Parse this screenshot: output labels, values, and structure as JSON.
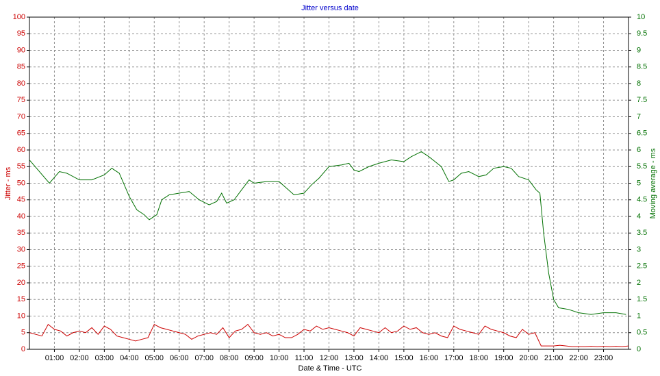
{
  "chart_data": {
    "type": "line",
    "title": "Jitter versus date",
    "ylabel": "Jitter - ms",
    "y2label": "Moving average - ms",
    "xlabel": "Date & Time - UTC",
    "xlim": [
      0,
      24
    ],
    "xticks": [
      {
        "value": 1,
        "label": "01:00"
      },
      {
        "value": 2,
        "label": "02:00"
      },
      {
        "value": 3,
        "label": "03:00"
      },
      {
        "value": 4,
        "label": "04:00"
      },
      {
        "value": 5,
        "label": "05:00"
      },
      {
        "value": 6,
        "label": "06:00"
      },
      {
        "value": 7,
        "label": "07:00"
      },
      {
        "value": 8,
        "label": "08:00"
      },
      {
        "value": 9,
        "label": "09:00"
      },
      {
        "value": 10,
        "label": "10:00"
      },
      {
        "value": 11,
        "label": "11:00"
      },
      {
        "value": 12,
        "label": "12:00"
      },
      {
        "value": 13,
        "label": "13:00"
      },
      {
        "value": 14,
        "label": "14:00"
      },
      {
        "value": 15,
        "label": "15:00"
      },
      {
        "value": 16,
        "label": "16:00"
      },
      {
        "value": 17,
        "label": "17:00"
      },
      {
        "value": 18,
        "label": "18:00"
      },
      {
        "value": 19,
        "label": "19:00"
      },
      {
        "value": 20,
        "label": "20:00"
      },
      {
        "value": 21,
        "label": "21:00"
      },
      {
        "value": 22,
        "label": "22:00"
      },
      {
        "value": 23,
        "label": "23:00"
      }
    ],
    "ylim": [
      0,
      100
    ],
    "yticks": [
      0,
      5,
      10,
      15,
      20,
      25,
      30,
      35,
      40,
      45,
      50,
      55,
      60,
      65,
      70,
      75,
      80,
      85,
      90,
      95,
      100
    ],
    "y2lim": [
      0,
      10
    ],
    "y2ticks": [
      0,
      0.5,
      1,
      1.5,
      2,
      2.5,
      3,
      3.5,
      4,
      4.5,
      5,
      5.5,
      6,
      6.5,
      7,
      7.5,
      8,
      8.5,
      9,
      9.5,
      10
    ],
    "grid": true,
    "series": [
      {
        "color": "#cc0000",
        "axis": "y",
        "x": [
          0,
          0.25,
          0.5,
          0.75,
          1,
          1.25,
          1.5,
          1.75,
          2,
          2.25,
          2.5,
          2.75,
          3,
          3.25,
          3.5,
          3.75,
          4,
          4.25,
          4.5,
          4.75,
          5,
          5.25,
          5.5,
          5.75,
          6,
          6.25,
          6.5,
          6.75,
          7,
          7.25,
          7.5,
          7.75,
          8,
          8.25,
          8.5,
          8.75,
          9,
          9.25,
          9.5,
          9.75,
          10,
          10.25,
          10.5,
          10.75,
          11,
          11.25,
          11.5,
          11.75,
          12,
          12.25,
          12.5,
          12.75,
          13,
          13.25,
          13.5,
          13.75,
          14,
          14.25,
          14.5,
          14.75,
          15,
          15.25,
          15.5,
          15.75,
          16,
          16.25,
          16.5,
          16.75,
          17,
          17.25,
          17.5,
          17.75,
          18,
          18.25,
          18.5,
          18.75,
          19,
          19.25,
          19.5,
          19.75,
          20,
          20.25,
          20.5,
          20.75,
          21,
          21.25,
          21.5,
          21.75,
          22,
          22.25,
          22.5,
          22.75,
          23,
          23.25,
          23.5,
          23.75,
          24
        ],
        "values": [
          5,
          4.5,
          4,
          7.5,
          6,
          5.5,
          4,
          5,
          5.5,
          5,
          6.5,
          4.5,
          7,
          6,
          4,
          3.5,
          3,
          2.5,
          3,
          3.5,
          7.5,
          6.5,
          6,
          5.5,
          5,
          4.5,
          3,
          4,
          4.5,
          5,
          4.5,
          6.5,
          3.5,
          5.5,
          6,
          7.5,
          5,
          4.5,
          5,
          4,
          4.5,
          3.5,
          3.5,
          4.5,
          6,
          5.5,
          7,
          6,
          6.5,
          6,
          5.5,
          5,
          4,
          6.5,
          6,
          5.5,
          5,
          6.5,
          5,
          5.5,
          7,
          6,
          6.5,
          5,
          4.5,
          5,
          4,
          3.5,
          7,
          6,
          5.5,
          5,
          4.5,
          7,
          6,
          5.5,
          5,
          4,
          3.5,
          6,
          4.5,
          5,
          1,
          1,
          1,
          1.2,
          1,
          0.8,
          0.8,
          0.8,
          0.9,
          0.8,
          0.9,
          0.8,
          0.9,
          0.8,
          1
        ]
      },
      {
        "color": "#007000",
        "axis": "y2",
        "x": [
          0,
          0.8,
          1.2,
          1.5,
          2,
          2.5,
          3,
          3.3,
          3.6,
          4,
          4.3,
          4.6,
          4.8,
          5.1,
          5.3,
          5.6,
          6,
          6.4,
          6.8,
          7.2,
          7.5,
          7.7,
          7.9,
          8.2,
          8.5,
          8.8,
          9,
          9.5,
          10,
          10.3,
          10.6,
          11,
          11.3,
          11.6,
          12,
          12.5,
          12.8,
          13,
          13.2,
          13.6,
          14,
          14.5,
          15,
          15.3,
          15.7,
          16,
          16.5,
          16.8,
          17,
          17.3,
          17.6,
          18,
          18.3,
          18.6,
          19,
          19.3,
          19.6,
          20,
          20.3,
          20.45,
          20.6,
          20.8,
          21,
          21.2,
          21.6,
          22,
          22.5,
          23,
          23.5,
          23.9
        ],
        "values": [
          5.7,
          5.0,
          5.35,
          5.3,
          5.1,
          5.1,
          5.25,
          5.45,
          5.3,
          4.6,
          4.2,
          4.05,
          3.9,
          4.05,
          4.5,
          4.65,
          4.7,
          4.75,
          4.5,
          4.35,
          4.45,
          4.7,
          4.4,
          4.5,
          4.8,
          5.1,
          5.0,
          5.05,
          5.05,
          4.85,
          4.65,
          4.7,
          4.95,
          5.15,
          5.5,
          5.55,
          5.6,
          5.4,
          5.35,
          5.5,
          5.6,
          5.7,
          5.65,
          5.8,
          5.95,
          5.8,
          5.5,
          5.05,
          5.1,
          5.3,
          5.35,
          5.2,
          5.25,
          5.45,
          5.5,
          5.45,
          5.2,
          5.1,
          4.8,
          4.7,
          3.5,
          2.3,
          1.5,
          1.25,
          1.2,
          1.1,
          1.05,
          1.1,
          1.1,
          1.05
        ]
      }
    ]
  }
}
